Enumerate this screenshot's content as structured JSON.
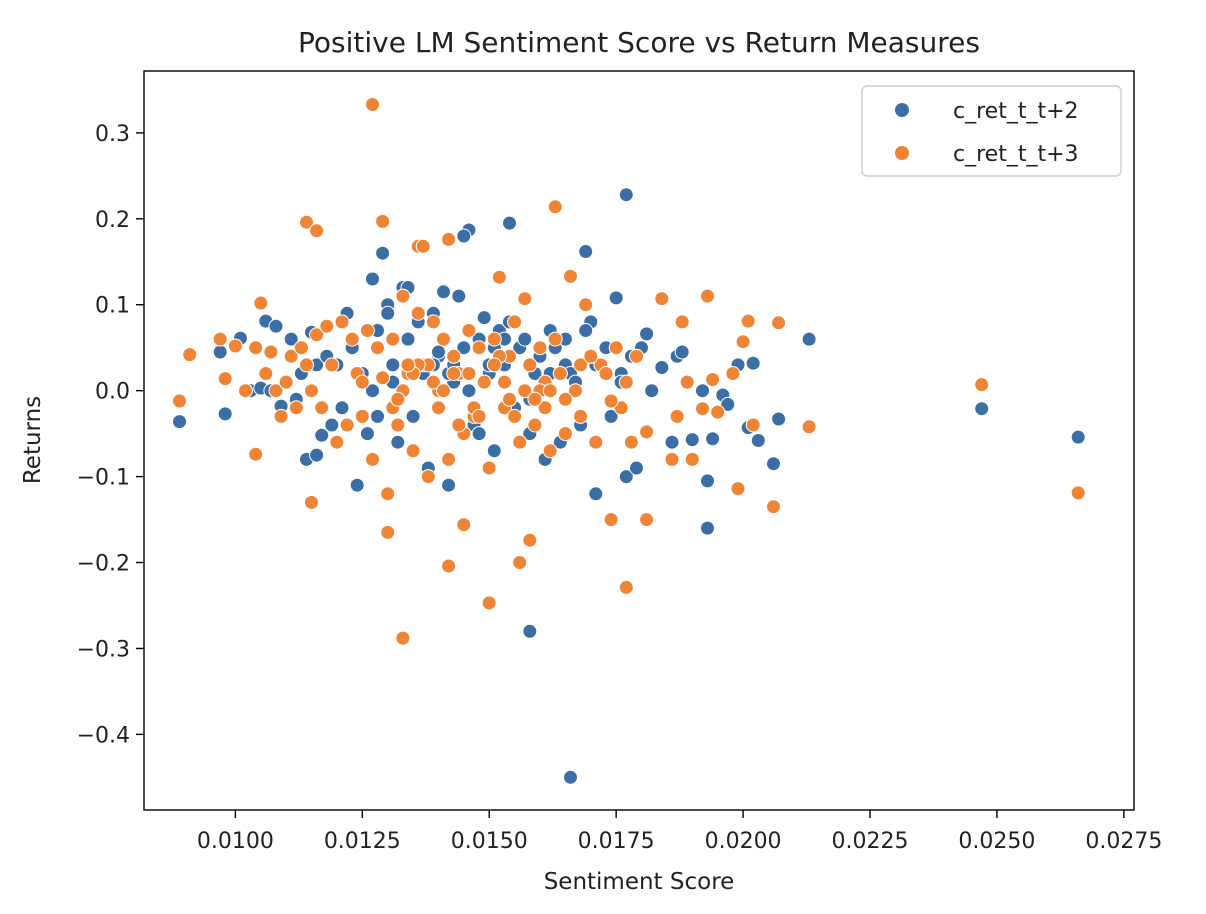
{
  "chart_data": {
    "type": "scatter",
    "title": "Positive LM Sentiment Score vs Return Measures",
    "xlabel": "Sentiment Score",
    "ylabel": "Returns",
    "xlim": [
      0.0082,
      0.0277
    ],
    "ylim": [
      -0.488,
      0.372
    ],
    "x_ticks": [
      0.01,
      0.0125,
      0.015,
      0.0175,
      0.02,
      0.0225,
      0.025,
      0.0275
    ],
    "x_tick_labels": [
      "0.0100",
      "0.0125",
      "0.0150",
      "0.0175",
      "0.0200",
      "0.0225",
      "0.0250",
      "0.0275"
    ],
    "y_ticks": [
      0.3,
      0.2,
      0.1,
      0.0,
      -0.1,
      -0.2,
      -0.3,
      -0.4
    ],
    "y_tick_labels": [
      "0.3",
      "0.2",
      "0.1",
      "0.0",
      "−0.1",
      "−0.2",
      "−0.3",
      "−0.4"
    ],
    "grid": false,
    "legend_position": "top-right",
    "series": [
      {
        "name": "c_ret_t_t+2",
        "color": "#3a6ea5",
        "x": [
          0.0089,
          0.0098,
          0.0097,
          0.0101,
          0.0103,
          0.0105,
          0.0106,
          0.0107,
          0.0108,
          0.0109,
          0.011,
          0.0111,
          0.0112,
          0.0113,
          0.0114,
          0.0115,
          0.0116,
          0.0116,
          0.0117,
          0.0118,
          0.0119,
          0.012,
          0.0121,
          0.0122,
          0.0123,
          0.0124,
          0.0125,
          0.0126,
          0.0127,
          0.0128,
          0.0129,
          0.013,
          0.0131,
          0.0132,
          0.0133,
          0.0134,
          0.0135,
          0.0136,
          0.0137,
          0.0138,
          0.0139,
          0.014,
          0.0141,
          0.0142,
          0.0143,
          0.0144,
          0.0145,
          0.0146,
          0.0147,
          0.0148,
          0.0149,
          0.015,
          0.0151,
          0.0152,
          0.0153,
          0.0154,
          0.0155,
          0.0156,
          0.0157,
          0.0158,
          0.0159,
          0.016,
          0.0161,
          0.0162,
          0.0163,
          0.0164,
          0.0165,
          0.0166,
          0.0167,
          0.0168,
          0.0169,
          0.017,
          0.0171,
          0.0172,
          0.0173,
          0.0174,
          0.0175,
          0.0176,
          0.0177,
          0.0178,
          0.0179,
          0.018,
          0.0181,
          0.0182,
          0.0184,
          0.0186,
          0.0187,
          0.0188,
          0.019,
          0.0192,
          0.0193,
          0.0194,
          0.0196,
          0.0197,
          0.0199,
          0.0201,
          0.0202,
          0.0203,
          0.0206,
          0.0207,
          0.0213,
          0.0247,
          0.0266,
          0.0127,
          0.013,
          0.0134,
          0.0145,
          0.0154,
          0.0165,
          0.0169,
          0.0176,
          0.0177,
          0.0158,
          0.0166,
          0.0193,
          0.0171,
          0.0142,
          0.0131,
          0.0128,
          0.014,
          0.015,
          0.0155,
          0.016,
          0.0137,
          0.0143,
          0.0148,
          0.0153,
          0.0158,
          0.0162,
          0.0146,
          0.0139,
          0.0132,
          0.0151
        ],
        "y": [
          -0.036,
          -0.027,
          0.045,
          0.061,
          0.0,
          0.003,
          0.081,
          0.0,
          0.075,
          -0.018,
          0.01,
          0.06,
          -0.01,
          0.02,
          -0.08,
          0.068,
          0.03,
          -0.075,
          -0.052,
          0.04,
          -0.04,
          0.03,
          -0.02,
          0.09,
          0.05,
          -0.11,
          0.02,
          -0.05,
          0.13,
          0.07,
          0.16,
          0.1,
          0.03,
          -0.06,
          0.12,
          0.06,
          -0.03,
          0.08,
          0.02,
          -0.09,
          0.09,
          0.04,
          0.115,
          -0.11,
          0.01,
          0.11,
          0.05,
          0.187,
          -0.04,
          0.06,
          0.085,
          0.02,
          -0.07,
          0.07,
          0.03,
          0.195,
          -0.03,
          0.05,
          0.06,
          -0.05,
          0.02,
          0.04,
          -0.08,
          0.07,
          0.05,
          -0.06,
          0.03,
          0.02,
          0.01,
          -0.04,
          0.162,
          0.08,
          -0.12,
          0.03,
          0.05,
          -0.03,
          0.108,
          0.02,
          -0.1,
          0.04,
          -0.09,
          0.05,
          0.066,
          0.0,
          0.027,
          -0.06,
          0.04,
          0.045,
          -0.057,
          0.0,
          -0.105,
          -0.056,
          -0.005,
          -0.016,
          0.03,
          -0.043,
          0.032,
          -0.058,
          -0.085,
          -0.033,
          0.06,
          -0.021,
          -0.054,
          0.0,
          0.09,
          0.12,
          0.18,
          0.08,
          0.06,
          0.07,
          0.01,
          0.228,
          -0.28,
          -0.45,
          -0.16,
          0.03,
          0.02,
          0.01,
          -0.03,
          0.045,
          0.03,
          -0.02,
          0.0,
          0.02,
          0.03,
          -0.05,
          0.06,
          -0.01,
          0.02,
          0.0,
          0.03,
          -0.04,
          0.05
        ]
      },
      {
        "name": "c_ret_t_t+3",
        "color": "#ee8434",
        "x": [
          0.0089,
          0.0091,
          0.0097,
          0.0098,
          0.01,
          0.0102,
          0.0104,
          0.0105,
          0.0106,
          0.0107,
          0.0108,
          0.0109,
          0.011,
          0.0111,
          0.0112,
          0.0113,
          0.0114,
          0.0115,
          0.0116,
          0.0117,
          0.0118,
          0.0119,
          0.012,
          0.0121,
          0.0122,
          0.0123,
          0.0124,
          0.0125,
          0.0126,
          0.0127,
          0.0128,
          0.0129,
          0.013,
          0.0131,
          0.0132,
          0.0133,
          0.0134,
          0.0135,
          0.0136,
          0.0137,
          0.0138,
          0.0139,
          0.014,
          0.0141,
          0.0142,
          0.0143,
          0.0144,
          0.0145,
          0.0146,
          0.0147,
          0.0148,
          0.0149,
          0.015,
          0.0151,
          0.0152,
          0.0153,
          0.0154,
          0.0155,
          0.0156,
          0.0157,
          0.0158,
          0.0159,
          0.016,
          0.0161,
          0.0162,
          0.0163,
          0.0164,
          0.0165,
          0.0166,
          0.0167,
          0.0168,
          0.0169,
          0.017,
          0.0171,
          0.0172,
          0.0173,
          0.0174,
          0.0175,
          0.0176,
          0.0177,
          0.0178,
          0.0179,
          0.0181,
          0.0184,
          0.0186,
          0.0187,
          0.0188,
          0.0189,
          0.019,
          0.0193,
          0.0194,
          0.0195,
          0.0198,
          0.0199,
          0.02,
          0.0201,
          0.0202,
          0.0206,
          0.0207,
          0.0213,
          0.0247,
          0.0266,
          0.0127,
          0.0129,
          0.0114,
          0.0116,
          0.0136,
          0.0137,
          0.0142,
          0.0163,
          0.0133,
          0.0142,
          0.015,
          0.0158,
          0.0177,
          0.0156,
          0.0145,
          0.013,
          0.0115,
          0.0104,
          0.0174,
          0.0181,
          0.0192,
          0.0133,
          0.0138,
          0.0147,
          0.0152,
          0.016,
          0.0165,
          0.0143,
          0.0155,
          0.0149,
          0.0161,
          0.0136,
          0.0157,
          0.0144,
          0.0139,
          0.0146,
          0.0154,
          0.0168,
          0.017,
          0.0125,
          0.0131,
          0.0141,
          0.0151,
          0.0159,
          0.0135,
          0.0148,
          0.0162,
          0.0164,
          0.0153,
          0.014,
          0.0134,
          0.0132
        ],
        "y": [
          -0.012,
          0.042,
          0.06,
          0.014,
          0.052,
          0.0,
          -0.074,
          0.102,
          0.02,
          0.045,
          0.0,
          -0.03,
          0.01,
          0.04,
          -0.02,
          0.05,
          0.03,
          0.0,
          0.065,
          -0.02,
          0.075,
          0.03,
          -0.06,
          0.08,
          -0.04,
          0.06,
          0.02,
          -0.03,
          0.07,
          -0.08,
          0.05,
          0.015,
          -0.12,
          0.06,
          -0.04,
          0.11,
          0.02,
          -0.07,
          0.09,
          0.03,
          -0.1,
          0.08,
          0.0,
          0.06,
          -0.08,
          0.04,
          0.02,
          -0.05,
          0.07,
          -0.03,
          0.05,
          0.01,
          -0.09,
          0.06,
          0.132,
          -0.02,
          0.04,
          0.08,
          -0.06,
          0.107,
          0.03,
          -0.04,
          0.05,
          0.01,
          -0.07,
          0.06,
          0.02,
          -0.05,
          0.133,
          0.0,
          -0.03,
          0.1,
          0.04,
          -0.06,
          0.03,
          0.02,
          -0.15,
          0.05,
          -0.02,
          0.01,
          -0.06,
          0.04,
          -0.15,
          0.107,
          -0.08,
          -0.03,
          0.08,
          0.01,
          -0.08,
          0.11,
          0.013,
          -0.025,
          0.02,
          -0.114,
          0.057,
          0.081,
          -0.04,
          -0.135,
          0.079,
          -0.042,
          0.007,
          -0.119,
          0.333,
          0.197,
          0.196,
          0.186,
          0.168,
          0.168,
          0.176,
          0.214,
          -0.288,
          -0.204,
          -0.247,
          -0.174,
          -0.229,
          -0.2,
          -0.156,
          -0.165,
          -0.13,
          0.05,
          -0.012,
          -0.048,
          -0.021,
          0.0,
          0.03,
          -0.02,
          0.04,
          0.0,
          -0.01,
          0.02,
          -0.03,
          0.01,
          -0.02,
          0.03,
          0.0,
          -0.04,
          0.01,
          0.02,
          -0.01,
          0.03,
          0.04,
          0.01,
          -0.02,
          0.0,
          0.03,
          -0.01,
          0.02,
          -0.03,
          0.0,
          0.02,
          0.01,
          -0.02,
          0.03,
          -0.01
        ]
      }
    ]
  }
}
